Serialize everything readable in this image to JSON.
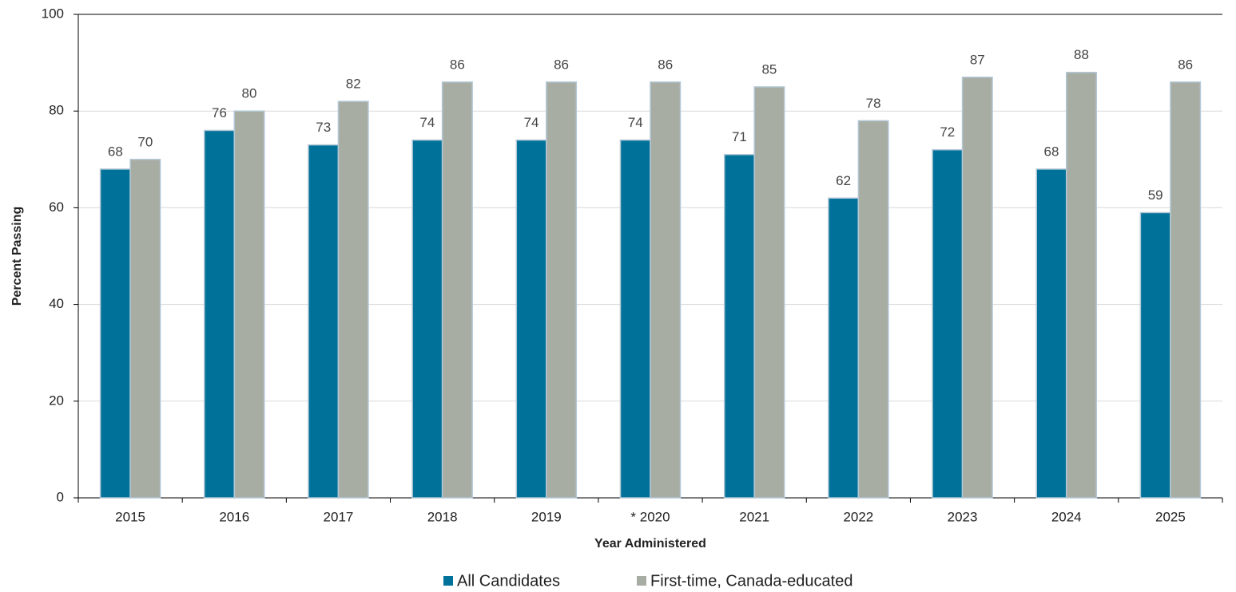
{
  "chart_data": {
    "type": "bar",
    "x_label": "Year Administered",
    "y_label": "Percent Passing",
    "categories": [
      "2015",
      "2016",
      "2017",
      "2018",
      "2019",
      "* 2020",
      "2021",
      "2022",
      "2023",
      "2024",
      "2025"
    ],
    "series": [
      {
        "name": "All Candidates",
        "color": "#00729a",
        "values": [
          68,
          76,
          73,
          74,
          74,
          74,
          71,
          62,
          72,
          68,
          59
        ]
      },
      {
        "name": "First-time, Canada-educated",
        "color": "#a7ada3",
        "values": [
          70,
          80,
          82,
          86,
          86,
          86,
          85,
          78,
          87,
          88,
          86
        ]
      }
    ],
    "ylim": [
      0,
      100
    ],
    "yticks": [
      0,
      20,
      40,
      60,
      80,
      100
    ],
    "grid": true,
    "legend": "bottom"
  }
}
